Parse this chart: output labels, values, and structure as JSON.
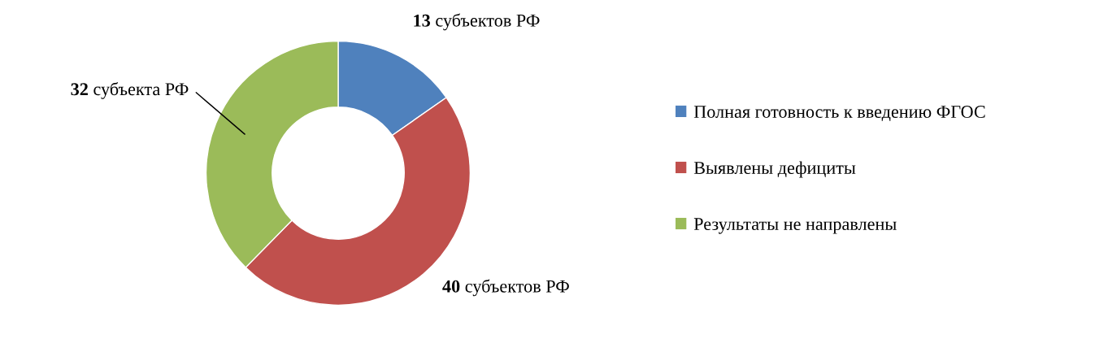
{
  "chart_data": {
    "type": "donut",
    "categories": [
      "Полная готовность к введению ФГОС",
      "Выявлены дефициты",
      "Результаты не направлены"
    ],
    "values": [
      13,
      40,
      32
    ],
    "colors": [
      "#4f81bd",
      "#c0504d",
      "#9bbb59"
    ],
    "value_labels": [
      "13 субъектов РФ",
      "40 субъектов РФ",
      "32 субъекта РФ"
    ],
    "legend": "right"
  }
}
